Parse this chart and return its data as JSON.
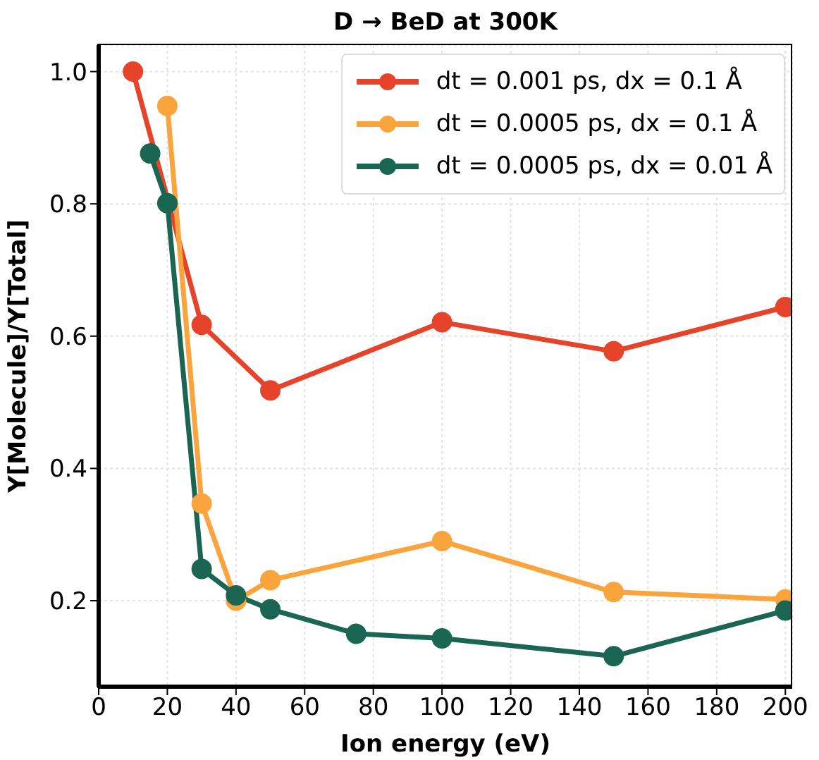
{
  "chart_data": {
    "type": "line",
    "title": "D → BeD at 300K",
    "xlabel": "Ion energy (eV)",
    "ylabel": "Y[Molecule]/Y[Total]",
    "xlim": [
      0,
      202
    ],
    "xticks": [
      0,
      20,
      40,
      60,
      80,
      100,
      120,
      140,
      160,
      180,
      200
    ],
    "ylim": [
      0.07,
      1.04
    ],
    "yticks": [
      0.2,
      0.4,
      0.6,
      0.8,
      {
        "value": 1.0,
        "label": "1.0"
      }
    ],
    "grid": true,
    "legend": "top right",
    "marker": "circle",
    "line_style": "solid",
    "series": [
      {
        "name": "dt = 0.001 ps, dx = 0.1 Å",
        "color": "#e5432a",
        "x": [
          10,
          30,
          50,
          100,
          150,
          200
        ],
        "values": [
          1.0,
          0.617,
          0.518,
          0.621,
          0.577,
          0.644
        ]
      },
      {
        "name": "dt = 0.0005 ps, dx = 0.1 Å",
        "color": "#f9a43c",
        "x": [
          20,
          30,
          40,
          50,
          100,
          150,
          200
        ],
        "values": [
          0.948,
          0.347,
          0.2,
          0.231,
          0.29,
          0.213,
          0.202
        ]
      },
      {
        "name": "dt = 0.0005 ps, dx = 0.01 Å",
        "color": "#1b6553",
        "x": [
          15,
          20,
          30,
          40,
          50,
          75,
          100,
          150,
          200
        ],
        "values": [
          0.876,
          0.801,
          0.248,
          0.208,
          0.187,
          0.15,
          0.143,
          0.116,
          0.185
        ]
      }
    ]
  }
}
